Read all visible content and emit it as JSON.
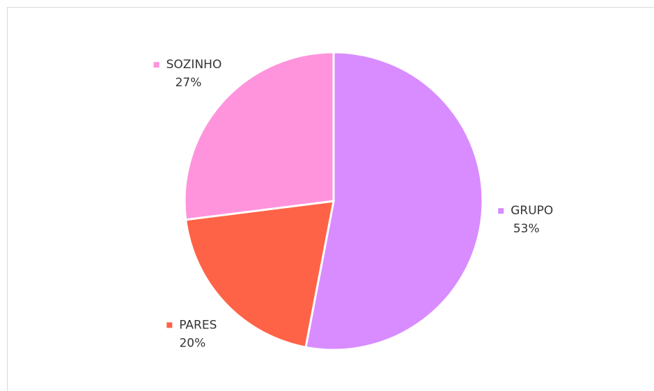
{
  "chart_data": {
    "type": "pie",
    "categories": [
      "GRUPO",
      "PARES",
      "SOZINHO"
    ],
    "values": [
      53,
      20,
      27
    ],
    "value_labels": [
      "53%",
      "20%",
      "27%"
    ],
    "colors": [
      "#d98cff",
      "#ff6347",
      "#ff94dd"
    ]
  }
}
